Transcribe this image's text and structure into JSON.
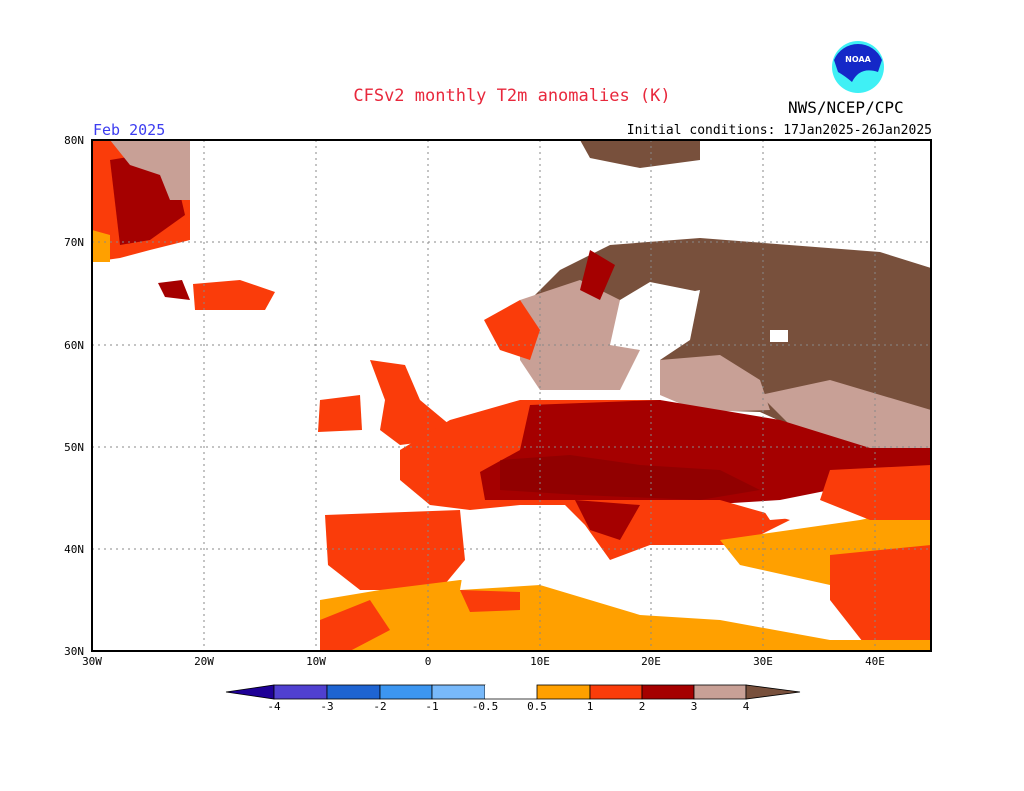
{
  "header": {
    "title": "CFSv2 monthly T2m anomalies (K)",
    "agency": "NWS/NCEP/CPC",
    "logo_text": "NOAA",
    "period": "Feb 2025",
    "initial_conditions": "Initial conditions: 17Jan2025-26Jan2025"
  },
  "map": {
    "projection": "lat-lon",
    "lon_range": [
      -30,
      45
    ],
    "lat_range": [
      30,
      80
    ],
    "lat_labels": [
      "80N",
      "70N",
      "60N",
      "50N",
      "40N",
      "30N"
    ],
    "lon_labels": [
      "30W",
      "20W",
      "10W",
      "0",
      "10E",
      "20E",
      "30E",
      "40E"
    ],
    "grid": "dotted"
  },
  "colorbar": {
    "labels": [
      "-4",
      "-3",
      "-2",
      "-1",
      "-0.5",
      "0.5",
      "1",
      "2",
      "3",
      "4"
    ],
    "colors": {
      "below_-4": "#1e0096",
      "-4_-3": "#5040d0",
      "-3_-2": "#1e64d2",
      "-2_-1": "#3c96f0",
      "-1_-0.5": "#78b9fa",
      "-0.5_0.5": "#ffffff",
      "0.5_1": "#ffa000",
      "1_2": "#fa3c0a",
      "2_3": "#a50000",
      "3_4": "#c8a096",
      "above_4": "#78503c"
    }
  }
}
